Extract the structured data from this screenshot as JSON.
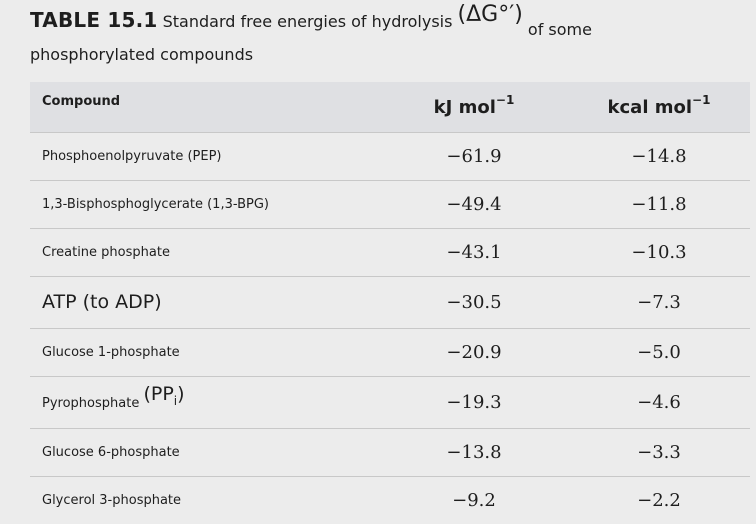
{
  "title": {
    "number": "TABLE 15.1",
    "text": "Standard free energies of hydrolysis",
    "paren": "(ΔG°′)",
    "suffix": "of some",
    "line2": "phosphorylated compounds"
  },
  "table": {
    "header": {
      "compound": "Compound",
      "kj": "kJ mol",
      "kcal": "kcal mol",
      "exponent": "−1"
    },
    "rows": [
      {
        "compound": "Phosphoenolpyruvate (PEP)",
        "kj": "−61.9",
        "kcal": "−14.8"
      },
      {
        "compound": "1,3-Bisphosphoglycerate (1,3-BPG)",
        "kj": "−49.4",
        "kcal": "−11.8"
      },
      {
        "compound": "Creatine phosphate",
        "kj": "−43.1",
        "kcal": "−10.3"
      },
      {
        "compound": "ATP (to ADP)",
        "kj": "−30.5",
        "kcal": "−7.3"
      },
      {
        "compound": "Glucose 1-phosphate",
        "kj": "−20.9",
        "kcal": "−5.0"
      },
      {
        "compound": "Pyrophosphate",
        "compound_extra": "(PP",
        "compound_sub": "i",
        "compound_close": ")",
        "kj": "−19.3",
        "kcal": "−4.6"
      },
      {
        "compound": "Glucose 6-phosphate",
        "kj": "−13.8",
        "kcal": "−3.3"
      },
      {
        "compound": "Glycerol 3-phosphate",
        "kj": "−9.2",
        "kcal": "−2.2"
      }
    ]
  }
}
